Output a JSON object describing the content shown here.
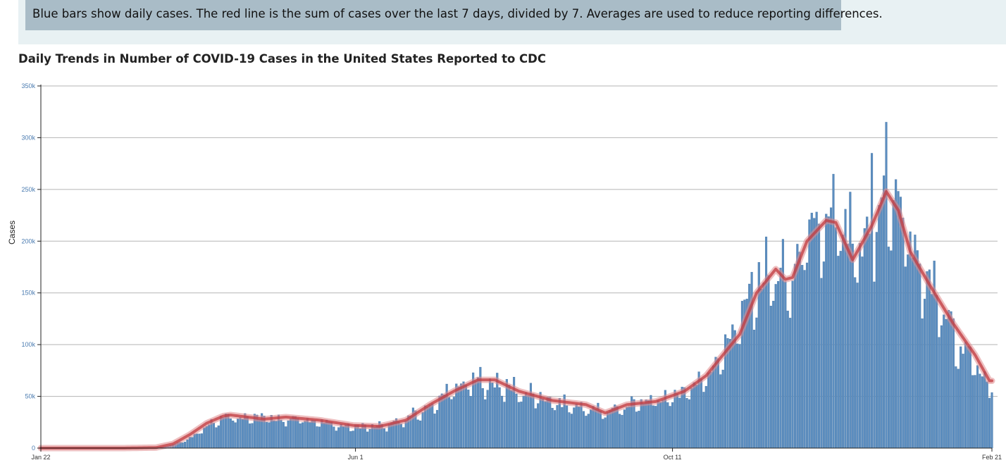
{
  "banner": {
    "note": "Blue bars show daily cases. The red line is the sum of cases over the last 7 days, divided by 7. Averages are used to reduce reporting differences."
  },
  "colors": {
    "bar": "#5b8dbf",
    "bar_stroke": "#3f6e9e",
    "line": "#c0393f",
    "line_glow": "#e08a8d",
    "grid": "#b5b5b5",
    "axis": "#222222",
    "band": "#e8f1f3",
    "note_box": "#a9bcc7"
  },
  "chart_data": {
    "type": "bar",
    "title": "Daily Trends in Number of COVID-19 Cases in the United States Reported to CDC",
    "ylabel": "Cases",
    "xlabel": "",
    "ylim": [
      0,
      350000
    ],
    "yticks": [
      0,
      50000,
      100000,
      150000,
      200000,
      250000,
      300000,
      350000
    ],
    "ytick_labels": [
      "0",
      "50k",
      "100k",
      "150k",
      "200k",
      "250k",
      "300k",
      "350k"
    ],
    "x_start_date": "2020-01-22",
    "x_end_date": "2021-02-21",
    "xtick_dates": [
      "2020-01-22",
      "2020-06-01",
      "2020-10-11",
      "2021-02-21"
    ],
    "xtick_labels": [
      "Jan 22",
      "Jun 1",
      "Oct 11",
      "Feb 21"
    ],
    "grid": true,
    "series": [
      {
        "kind": "bar",
        "anchors": [
          [
            "2020-01-22",
            0
          ],
          [
            "2020-02-25",
            0
          ],
          [
            "2020-03-10",
            300
          ],
          [
            "2020-03-17",
            3000
          ],
          [
            "2020-03-24",
            10000
          ],
          [
            "2020-03-31",
            22000
          ],
          [
            "2020-04-07",
            32000
          ],
          [
            "2020-04-14",
            31000
          ],
          [
            "2020-04-28",
            29000
          ],
          [
            "2020-05-12",
            28000
          ],
          [
            "2020-05-26",
            22000
          ],
          [
            "2020-06-01",
            21000
          ],
          [
            "2020-06-15",
            22000
          ],
          [
            "2020-06-29",
            36000
          ],
          [
            "2020-07-10",
            55000
          ],
          [
            "2020-07-20",
            66000
          ],
          [
            "2020-07-31",
            63000
          ],
          [
            "2020-08-10",
            54000
          ],
          [
            "2020-08-24",
            44000
          ],
          [
            "2020-09-07",
            38000
          ],
          [
            "2020-09-13",
            36000
          ],
          [
            "2020-09-27",
            44000
          ],
          [
            "2020-10-11",
            50000
          ],
          [
            "2020-10-25",
            70000
          ],
          [
            "2020-11-08",
            125000
          ],
          [
            "2020-11-15",
            165000
          ],
          [
            "2020-11-22",
            170000
          ],
          [
            "2020-11-29",
            160000
          ],
          [
            "2020-12-06",
            205000
          ],
          [
            "2020-12-13",
            215000
          ],
          [
            "2020-12-20",
            220000
          ],
          [
            "2020-12-27",
            185000
          ],
          [
            "2021-01-02",
            210000
          ],
          [
            "2021-01-09",
            250000
          ],
          [
            "2021-01-16",
            225000
          ],
          [
            "2021-01-23",
            170000
          ],
          [
            "2021-01-30",
            140000
          ],
          [
            "2021-02-06",
            110000
          ],
          [
            "2021-02-13",
            85000
          ],
          [
            "2021-02-20",
            65000
          ]
        ]
      },
      {
        "kind": "line",
        "anchors": [
          [
            "2020-01-22",
            0
          ],
          [
            "2020-02-25",
            0
          ],
          [
            "2020-03-10",
            500
          ],
          [
            "2020-03-17",
            4000
          ],
          [
            "2020-03-24",
            13000
          ],
          [
            "2020-03-31",
            24000
          ],
          [
            "2020-04-07",
            31000
          ],
          [
            "2020-04-10",
            32000
          ],
          [
            "2020-04-24",
            28000
          ],
          [
            "2020-05-03",
            30000
          ],
          [
            "2020-05-17",
            27000
          ],
          [
            "2020-05-31",
            22000
          ],
          [
            "2020-06-11",
            21000
          ],
          [
            "2020-06-22",
            27000
          ],
          [
            "2020-07-02",
            42000
          ],
          [
            "2020-07-12",
            55000
          ],
          [
            "2020-07-22",
            66000
          ],
          [
            "2020-07-29",
            66000
          ],
          [
            "2020-08-08",
            55000
          ],
          [
            "2020-08-22",
            46000
          ],
          [
            "2020-09-05",
            42000
          ],
          [
            "2020-09-13",
            34000
          ],
          [
            "2020-09-22",
            42000
          ],
          [
            "2020-10-04",
            45000
          ],
          [
            "2020-10-16",
            55000
          ],
          [
            "2020-10-25",
            70000
          ],
          [
            "2020-11-01",
            90000
          ],
          [
            "2020-11-08",
            110000
          ],
          [
            "2020-11-15",
            150000
          ],
          [
            "2020-11-23",
            173000
          ],
          [
            "2020-11-27",
            163000
          ],
          [
            "2020-11-30",
            165000
          ],
          [
            "2020-12-06",
            200000
          ],
          [
            "2020-12-14",
            220000
          ],
          [
            "2020-12-18",
            218000
          ],
          [
            "2020-12-25",
            182000
          ],
          [
            "2021-01-02",
            215000
          ],
          [
            "2021-01-08",
            248000
          ],
          [
            "2021-01-13",
            230000
          ],
          [
            "2021-01-18",
            190000
          ],
          [
            "2021-01-26",
            158000
          ],
          [
            "2021-02-05",
            120000
          ],
          [
            "2021-02-14",
            90000
          ],
          [
            "2021-02-20",
            65000
          ]
        ]
      }
    ],
    "visible_day_values": {
      "peak_day": [
        "2021-01-08",
        315000
      ],
      "tallest_secondary": [
        "2021-01-02",
        285000
      ]
    }
  }
}
